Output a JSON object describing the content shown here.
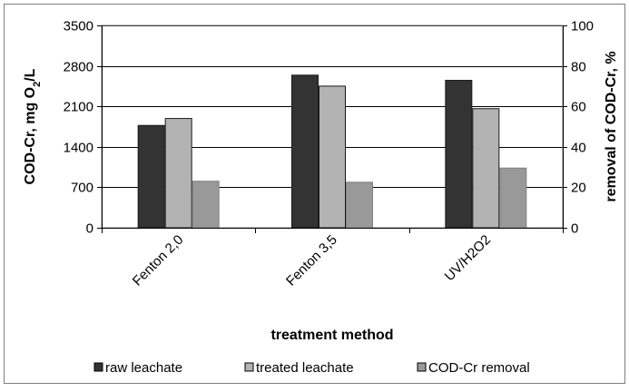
{
  "chart_data": {
    "type": "bar",
    "categories": [
      "Fenton 2,0",
      "Fenton 3,5",
      "UV/H2O2"
    ],
    "series": [
      {
        "name": "raw leachate",
        "axis": "left",
        "color": "#333333",
        "values": [
          1770,
          2640,
          2550
        ]
      },
      {
        "name": "treated leachate",
        "axis": "left",
        "color": "#b3b3b3",
        "values": [
          1890,
          2450,
          2060
        ]
      },
      {
        "name": "COD-Cr removal",
        "axis": "right",
        "color": "#999999",
        "values": [
          23,
          22.5,
          29.5
        ]
      }
    ],
    "ylabel": "COD-Cr, mg O",
    "ylabel_sub": "2",
    "ylabel_tail": "/L",
    "y2label": "removal of COD-Cr, %",
    "xlabel": "treatment method",
    "ylim": [
      0,
      3500
    ],
    "y2lim": [
      0,
      100
    ],
    "yticks": [
      "0",
      "700",
      "1400",
      "2100",
      "2800",
      "3500"
    ],
    "y2ticks": [
      "0",
      "20",
      "40",
      "60",
      "80",
      "100"
    ],
    "grid": true,
    "legend_position": "bottom"
  }
}
